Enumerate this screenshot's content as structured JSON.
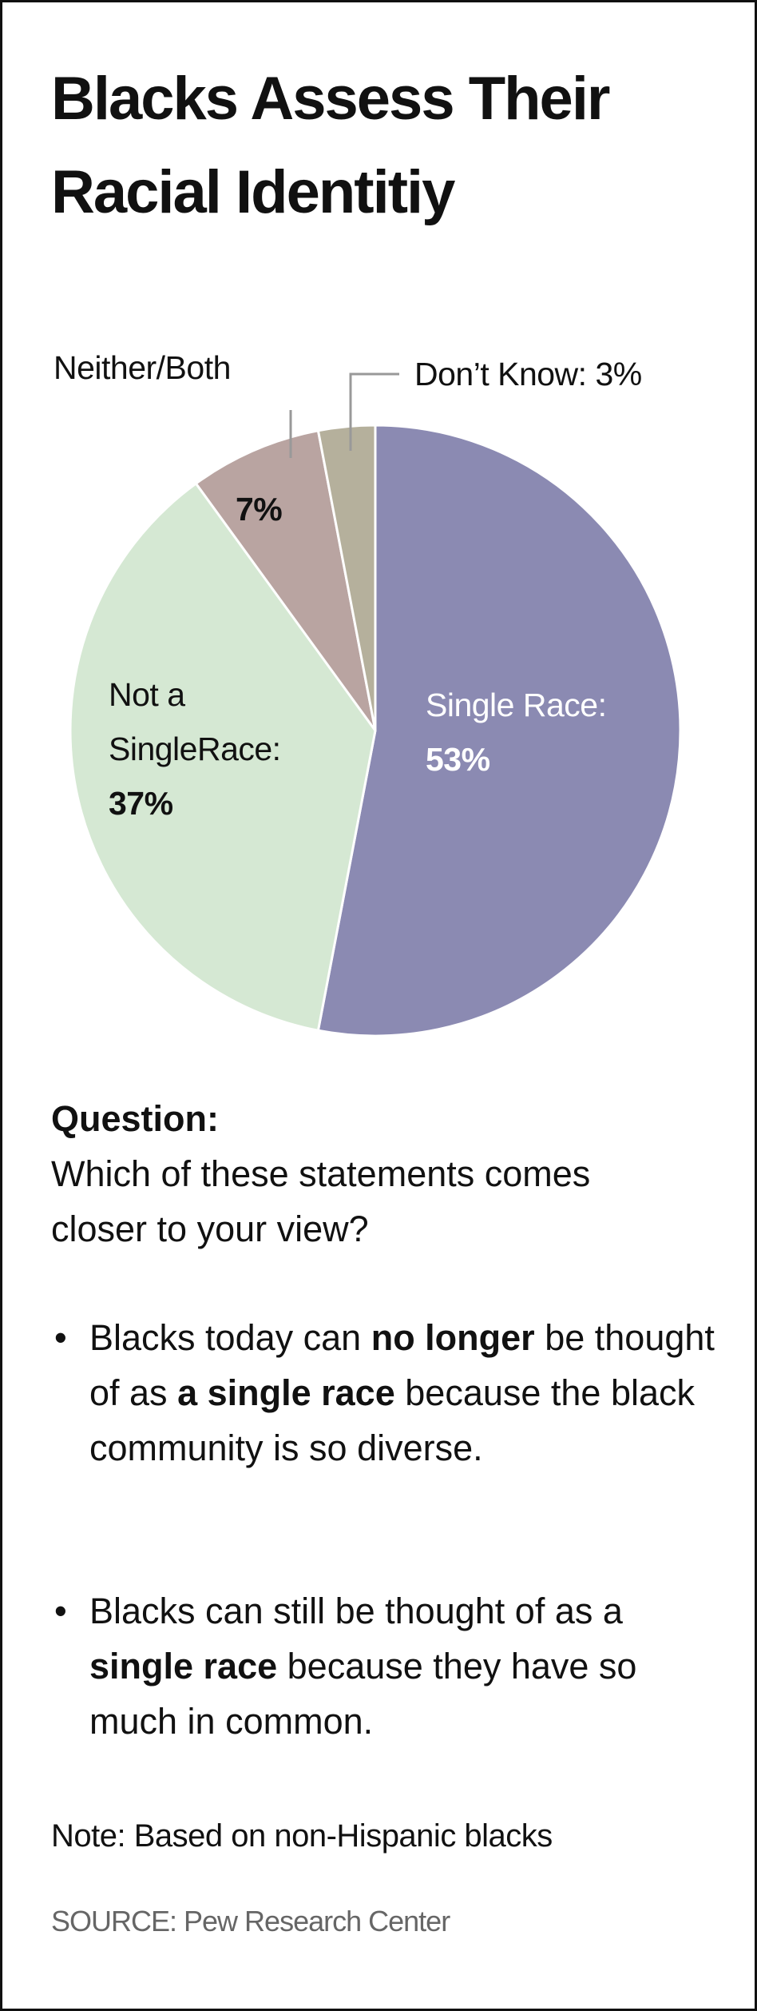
{
  "chart_data": {
    "type": "pie",
    "title": "Blacks Assess Their Racial Identitiy",
    "categories": [
      "Single Race:",
      "Not a SingleRace:",
      "Neither/Both",
      "Don’t Know:"
    ],
    "values": [
      53,
      37,
      7,
      3
    ],
    "value_labels": [
      "53%",
      "37%",
      "7%",
      "3%"
    ],
    "colors": [
      "#8b8ab2",
      "#d5e8d3",
      "#b9a4a1",
      "#b5b09c"
    ]
  },
  "question": {
    "heading": "Question:",
    "text": "Which of these statements comes closer to your view?"
  },
  "bullets": [
    [
      {
        "text": "Blacks today can"
      },
      {
        "text": "no longer",
        "bold": true
      },
      {
        "text": "be thought of as"
      },
      {
        "text": "a single race",
        "bold": true
      },
      {
        "text": "because the black community is so diverse."
      }
    ],
    [
      {
        "text": "Blacks can still be thought of as a"
      },
      {
        "text": "single race",
        "bold": true
      },
      {
        "text": "because they have so much in common."
      }
    ]
  ],
  "note": "Note: Based on non-Hispanic blacks",
  "source": "SOURCE: Pew Research Center"
}
